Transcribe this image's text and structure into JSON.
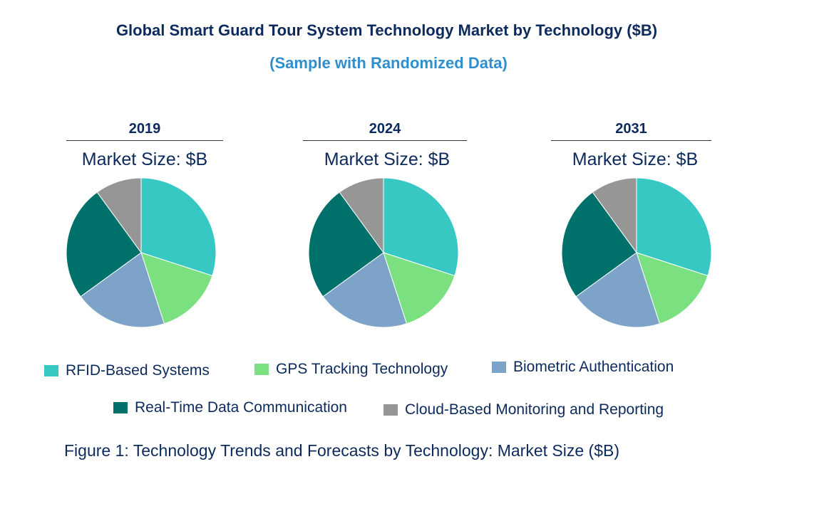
{
  "title": "Global Smart Guard Tour System Technology Market by Technology ($B)",
  "subtitle": "(Sample with Randomized Data)",
  "caption": "Figure 1: Technology Trends and Forecasts by Technology: Market Size ($B)",
  "chart_data": [
    {
      "type": "pie",
      "title": "2019",
      "subtitle": "Market Size: $B",
      "categories": [
        "RFID-Based Systems",
        "GPS Tracking Technology",
        "Biometric Authentication",
        "Real-Time Data Communication",
        "Cloud-Based Monitoring and Reporting"
      ],
      "values": [
        30,
        15,
        20,
        25,
        10
      ]
    },
    {
      "type": "pie",
      "title": "2024",
      "subtitle": "Market Size: $B",
      "categories": [
        "RFID-Based Systems",
        "GPS Tracking Technology",
        "Biometric Authentication",
        "Real-Time Data Communication",
        "Cloud-Based Monitoring and Reporting"
      ],
      "values": [
        30,
        15,
        20,
        25,
        10
      ]
    },
    {
      "type": "pie",
      "title": "2031",
      "subtitle": "Market Size: $B",
      "categories": [
        "RFID-Based Systems",
        "GPS Tracking Technology",
        "Biometric Authentication",
        "Real-Time Data Communication",
        "Cloud-Based Monitoring and Reporting"
      ],
      "values": [
        30,
        15,
        20,
        25,
        10
      ]
    }
  ],
  "legend": [
    {
      "label": "RFID-Based Systems",
      "color": "#38C8C4"
    },
    {
      "label": "GPS Tracking Technology",
      "color": "#7BE07F"
    },
    {
      "label": "Biometric Authentication",
      "color": "#7DA3C8"
    },
    {
      "label": "Real-Time Data Communication",
      "color": "#00716A"
    },
    {
      "label": "Cloud-Based Monitoring and Reporting",
      "color": "#969696"
    }
  ]
}
